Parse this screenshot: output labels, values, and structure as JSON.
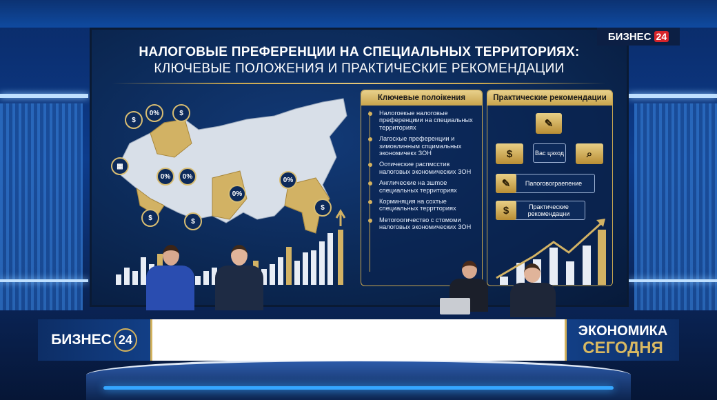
{
  "channel_logo": {
    "name": "БИЗНЕС",
    "number": "24"
  },
  "screen": {
    "title_line1": "НАЛОГОВЫЕ ПРЕФЕРЕНЦИИ НА СПЕЦИАЛЬНЫХ ТЕРРИТОРИЯХ:",
    "title_line2": "КЛЮЧЕВЫЕ ПОЛОЖЕНИЯ И ПРАКТИЧЕСКИЕ РЕКОМЕНДАЦИИ",
    "map_pins": [
      "0%",
      "0%",
      "0%",
      "0%",
      "0%",
      "0%"
    ],
    "key_points": {
      "header": "Ключевые полоікения",
      "items": [
        "Налогоекые налоговые преференциии на специальных территориях",
        "Лагосхые преференции и зимовлинным спцимальных экономичекх ЗОН",
        "Оотические распмсстив налоговых экономических ЗОН",
        "Англические на зшmое специальных территориях",
        "Корминяция на сохтые специальных терртториях",
        "Метогоогичество с стомоми налоговых экономических ЗОН"
      ]
    },
    "recommendations": {
      "header": "Практические рекомендации",
      "steps": [
        "Вас цэход",
        "Папоговограепение",
        "Практические рекомендацни"
      ]
    },
    "colors": {
      "gold": "#d4b25f",
      "navy": "#0b2752"
    }
  },
  "lower_third": {
    "logo_name": "БИЗНЕС",
    "logo_number": "24",
    "show_line1": "ЭКОНОМИКА",
    "show_line2": "СЕГОДНЯ",
    "headline": ""
  }
}
